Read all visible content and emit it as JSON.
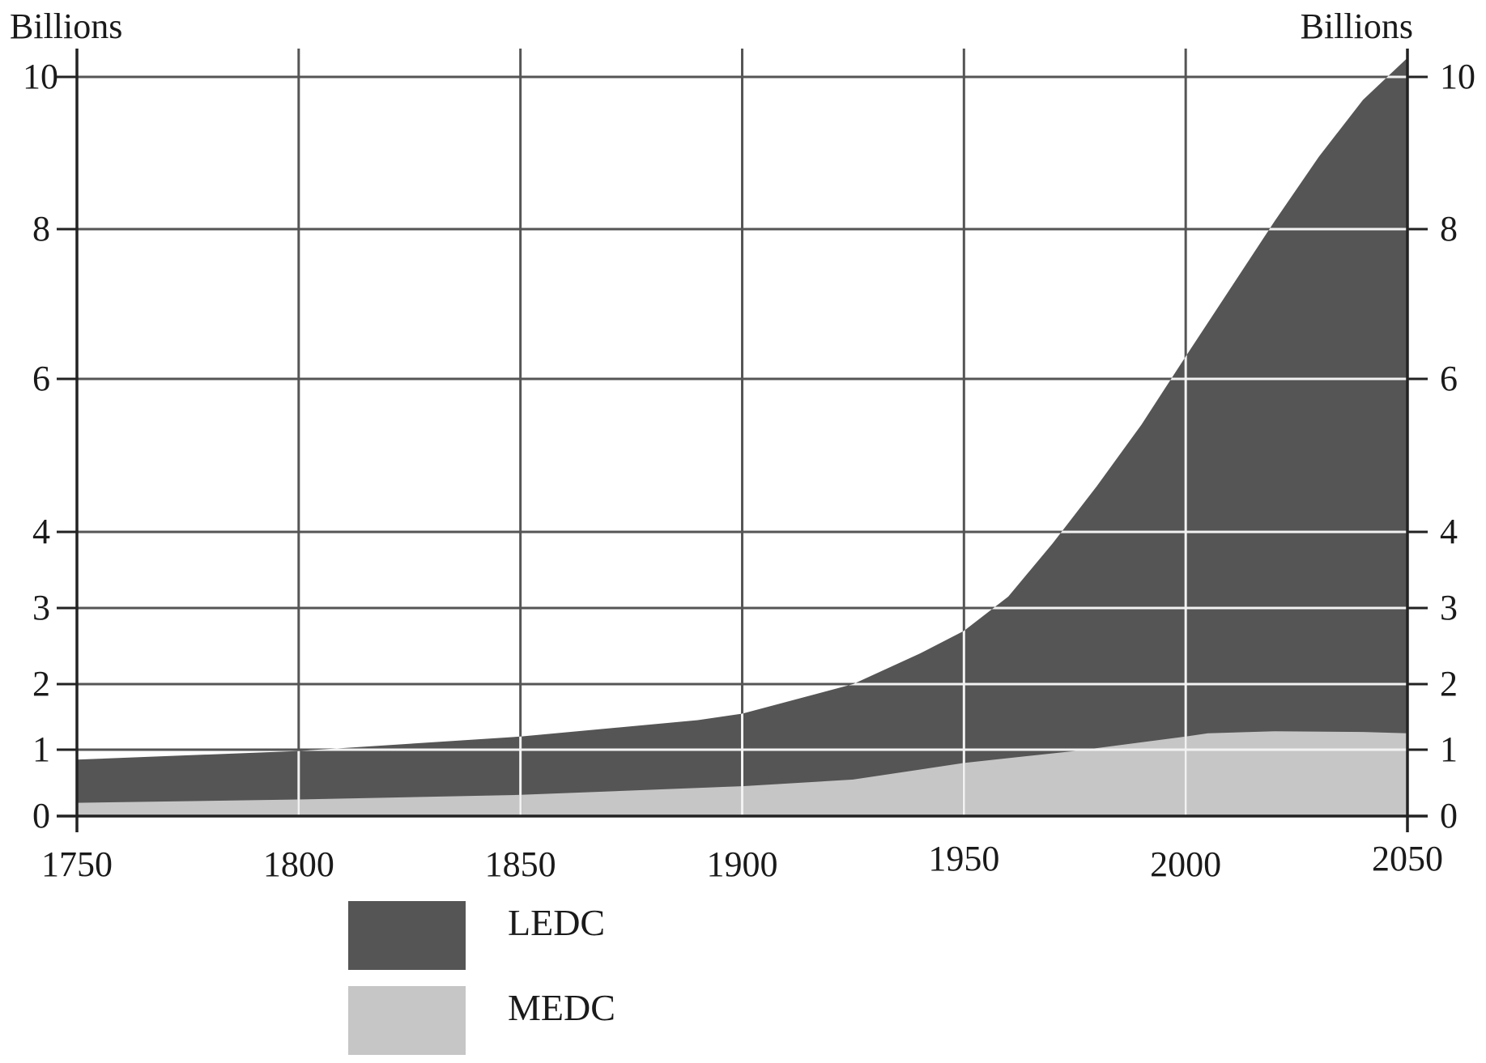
{
  "chart_data": {
    "type": "area",
    "stacked": true,
    "y_axis_label_left": "Billions",
    "y_axis_label_right": "Billions",
    "x_ticks": [
      1750,
      1800,
      1850,
      1900,
      1950,
      2000,
      2050
    ],
    "y_ticks": [
      0,
      1,
      2,
      3,
      4,
      6,
      8,
      10
    ],
    "y_scale_note": "non-linear axis: 0–4 compressed, 4–10 linear",
    "xlim": [
      1750,
      2050
    ],
    "ylim": [
      0,
      10
    ],
    "grid": true,
    "legend_position": "bottom-left",
    "series": [
      {
        "name": "MEDC",
        "color": "#c6c6c6",
        "points": [
          [
            1750,
            0.2
          ],
          [
            1800,
            0.25
          ],
          [
            1850,
            0.32
          ],
          [
            1900,
            0.45
          ],
          [
            1925,
            0.55
          ],
          [
            1950,
            0.8
          ],
          [
            1975,
            0.98
          ],
          [
            2000,
            1.2
          ],
          [
            2005,
            1.25
          ],
          [
            2020,
            1.28
          ],
          [
            2040,
            1.27
          ],
          [
            2050,
            1.25
          ]
        ]
      },
      {
        "name": "LEDC",
        "color": "#555555",
        "note": "values are the stacked total (MEDC + LEDC)",
        "points": [
          [
            1750,
            0.85
          ],
          [
            1800,
            0.98
          ],
          [
            1850,
            1.2
          ],
          [
            1890,
            1.45
          ],
          [
            1900,
            1.55
          ],
          [
            1925,
            2.0
          ],
          [
            1940,
            2.4
          ],
          [
            1950,
            2.7
          ],
          [
            1960,
            3.15
          ],
          [
            1970,
            3.85
          ],
          [
            1980,
            4.6
          ],
          [
            1990,
            5.4
          ],
          [
            2000,
            6.3
          ],
          [
            2010,
            7.2
          ],
          [
            2020,
            8.1
          ],
          [
            2030,
            8.95
          ],
          [
            2040,
            9.7
          ],
          [
            2050,
            10.25
          ]
        ]
      }
    ],
    "legend": [
      {
        "label": "LEDC",
        "color": "#555555"
      },
      {
        "label": "MEDC",
        "color": "#c6c6c6"
      }
    ]
  }
}
